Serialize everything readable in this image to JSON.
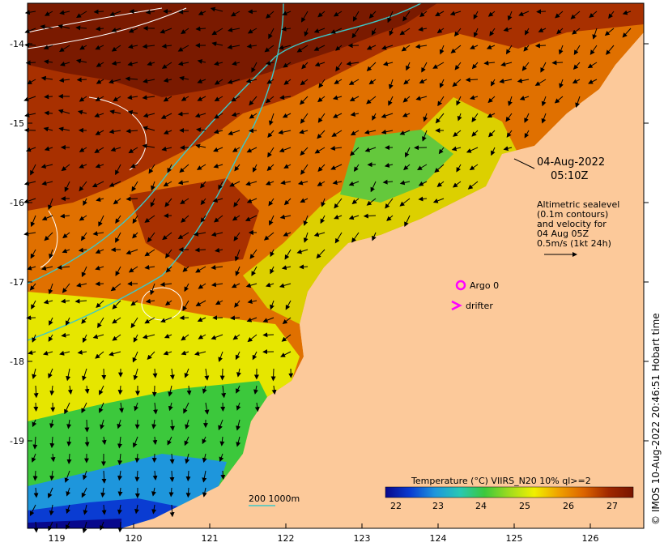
{
  "map": {
    "x_ticks": [
      "119",
      "120",
      "121",
      "122",
      "123",
      "124",
      "125",
      "126"
    ],
    "y_ticks": [
      "-14",
      "-15",
      "-16",
      "-17",
      "-18",
      "-19"
    ],
    "date_line1": "04-Aug-2022",
    "date_line2": "05:10Z",
    "altimetry_lines": [
      "Altimetric sealevel",
      "(0.1m contours)",
      "and velocity for",
      "04 Aug 05Z",
      "0.5m/s (1kt 24h)"
    ],
    "argo_label": "Argo 0",
    "drifter_label": "drifter",
    "depth_label": "200  1000m",
    "colorbar_title": "Temperature (°C) VIIRS_N20 10% ql>=2",
    "colorbar_ticks": [
      "22",
      "23",
      "24",
      "25",
      "26",
      "27"
    ],
    "credit": "© IMOS 10-Aug-2022 20:46:51 Hobart time",
    "colors": {
      "land": "#fcc99a",
      "argo": "#ff00ff",
      "drifter": "#ff00ff",
      "bathymetry": "#3cc8c8",
      "contours": "#ffffff"
    },
    "colorbar_stops": [
      "#08088c",
      "#0a3cd2",
      "#1e96dc",
      "#28c8b4",
      "#3cc83c",
      "#a0dc1e",
      "#f0f000",
      "#f0a000",
      "#dc6400",
      "#a02800",
      "#781400"
    ]
  }
}
